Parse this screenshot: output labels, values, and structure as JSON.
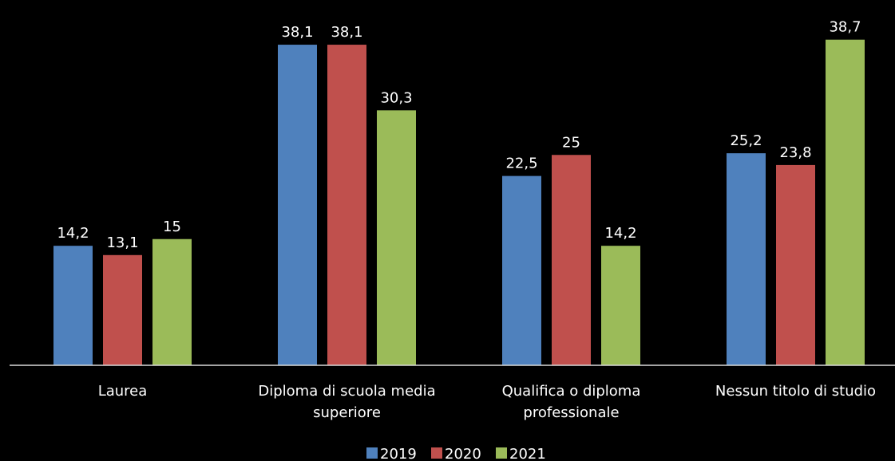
{
  "chart_data": {
    "type": "bar",
    "categories": [
      [
        "Laurea"
      ],
      [
        "Diploma di scuola media",
        "superiore"
      ],
      [
        "Qualifica o diploma",
        "professionale"
      ],
      [
        "Nessun titolo di studio"
      ]
    ],
    "series": [
      {
        "name": "2019",
        "color": "#4F81BD",
        "values": [
          14.2,
          38.1,
          22.5,
          25.2
        ],
        "labels": [
          "14,2",
          "38,1",
          "22,5",
          "25,2"
        ]
      },
      {
        "name": "2020",
        "color": "#C0504D",
        "values": [
          13.1,
          38.1,
          25,
          23.8
        ],
        "labels": [
          "13,1",
          "38,1",
          "25",
          "23,8"
        ]
      },
      {
        "name": "2021",
        "color": "#9BBB59",
        "values": [
          15,
          30.3,
          14.2,
          38.7
        ],
        "labels": [
          "15",
          "30,3",
          "14,2",
          "38,7"
        ]
      }
    ],
    "title": "",
    "xlabel": "",
    "ylabel": "",
    "ylim": [
      0,
      40
    ],
    "grid": false,
    "legend": "bottom"
  }
}
